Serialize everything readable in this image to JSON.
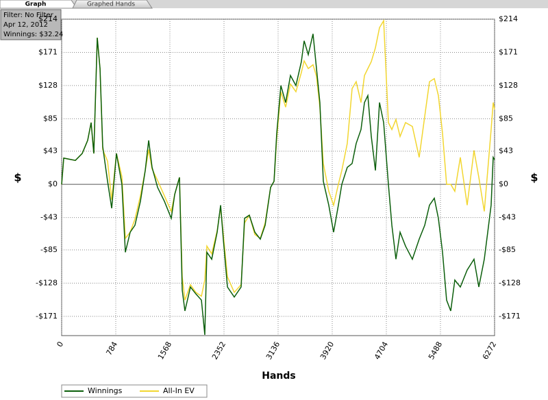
{
  "tabs": [
    "Graph",
    "Graphed Hands"
  ],
  "info_box": {
    "filter": "Filter: No Filter",
    "date": "Apr 12, 2012",
    "winnings": "Winnings: $32.24"
  },
  "chart_data": {
    "type": "line",
    "x_label": "Hands",
    "y_label": "$",
    "x": [
      0,
      30,
      199,
      298,
      377,
      427,
      466,
      516,
      556,
      595,
      665,
      725,
      794,
      873,
      923,
      993,
      1062,
      1141,
      1211,
      1261,
      1310,
      1390,
      1489,
      1588,
      1638,
      1707,
      1747,
      1786,
      1866,
      1945,
      2025,
      2074,
      2104,
      2174,
      2253,
      2303,
      2342,
      2402,
      2501,
      2600,
      2650,
      2719,
      2799,
      2878,
      2948,
      3027,
      3077,
      3116,
      3176,
      3245,
      3315,
      3394,
      3473,
      3513,
      3573,
      3642,
      3692,
      3741,
      3791,
      3870,
      3940,
      4009,
      4059,
      4138,
      4208,
      4267,
      4337,
      4387,
      4436,
      4486,
      4546,
      4605,
      4665,
      4734,
      4784,
      4843,
      4903,
      4982,
      5081,
      5180,
      5260,
      5329,
      5399,
      5458,
      5518,
      5577,
      5637,
      5696,
      5776,
      5875,
      5974,
      6044,
      6123,
      6173,
      6222,
      6252,
      6272
    ],
    "series": [
      {
        "name": "Winnings",
        "color": "#0b5e0b",
        "values": [
          0,
          34,
          31,
          40,
          57,
          80,
          40,
          190,
          150,
          49,
          4,
          -31,
          40,
          0,
          -88,
          -62,
          -53,
          -22,
          18,
          57,
          22,
          -4,
          -22,
          -44,
          -13,
          9,
          -137,
          -164,
          -133,
          -142,
          -150,
          -195,
          -88,
          -97,
          -62,
          -27,
          -71,
          -133,
          -146,
          -133,
          -44,
          -40,
          -62,
          -71,
          -53,
          -4,
          4,
          66,
          128,
          106,
          141,
          128,
          159,
          186,
          168,
          195,
          150,
          106,
          4,
          -27,
          -62,
          -27,
          0,
          22,
          27,
          53,
          71,
          106,
          115,
          62,
          18,
          106,
          80,
          0,
          -53,
          -97,
          -62,
          -80,
          -97,
          -71,
          -53,
          -27,
          -18,
          -44,
          -88,
          -150,
          -164,
          -124,
          -133,
          -111,
          -97,
          -133,
          -97,
          -62,
          -27,
          35,
          32
        ]
      },
      {
        "name": "All-In EV",
        "color": "#f2d630",
        "values": [
          0,
          34,
          31,
          40,
          57,
          80,
          40,
          190,
          150,
          45,
          30,
          -20,
          40,
          10,
          -70,
          -62,
          -45,
          -15,
          18,
          45,
          20,
          5,
          -15,
          -35,
          -13,
          9,
          -120,
          -150,
          -130,
          -140,
          -145,
          -124,
          -80,
          -90,
          -60,
          -30,
          -65,
          -120,
          -140,
          -130,
          -50,
          -40,
          -65,
          -70,
          -50,
          -4,
          4,
          60,
          120,
          100,
          130,
          120,
          145,
          160,
          150,
          155,
          140,
          100,
          27,
          -9,
          -27,
          0,
          18,
          53,
          124,
          133,
          106,
          141,
          150,
          159,
          177,
          203,
          212,
          80,
          71,
          84,
          62,
          80,
          75,
          35,
          88,
          133,
          137,
          115,
          66,
          0,
          0,
          -9,
          35,
          -27,
          44,
          9,
          -35,
          18,
          71,
          106,
          97
        ]
      }
    ],
    "xlim": [
      0,
      6272
    ],
    "xticks": [
      0,
      784,
      1568,
      2352,
      3136,
      3920,
      4704,
      5488,
      6272
    ],
    "ylim": [
      -196,
      214
    ],
    "yticks": [
      {
        "value": -171,
        "label": "-$171"
      },
      {
        "value": -128,
        "label": "-$128"
      },
      {
        "value": -85,
        "label": "-$85"
      },
      {
        "value": -43,
        "label": "-$43"
      },
      {
        "value": 0,
        "label": "$0"
      },
      {
        "value": 43,
        "label": "$43"
      },
      {
        "value": 85,
        "label": "$85"
      },
      {
        "value": 128,
        "label": "$128"
      },
      {
        "value": 171,
        "label": "$171"
      },
      {
        "value": 214,
        "label": "$214"
      }
    ],
    "grid": true
  }
}
